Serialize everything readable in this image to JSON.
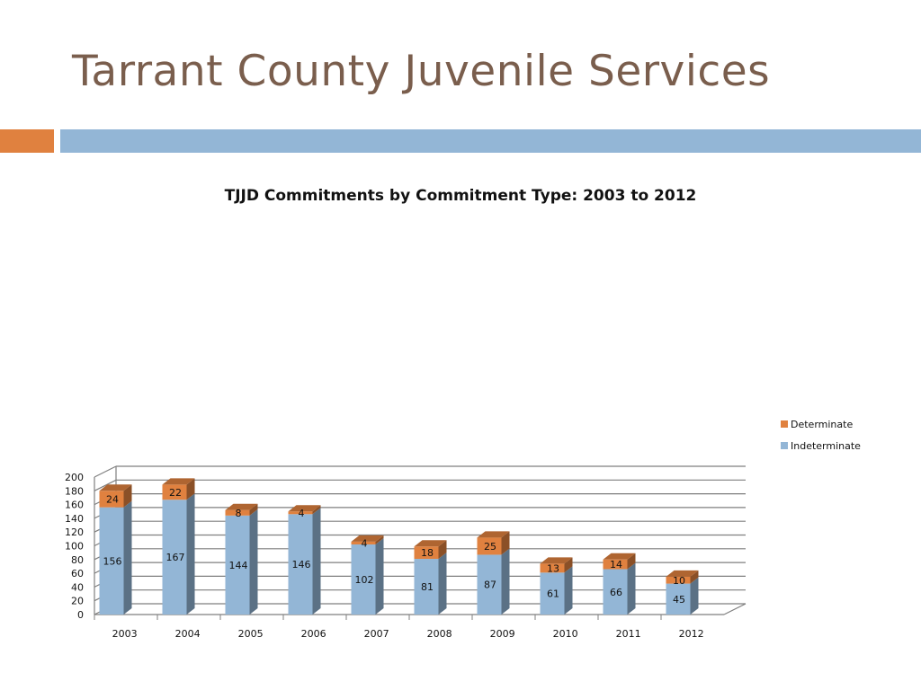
{
  "slide": {
    "title": "Tarrant County Juvenile Services"
  },
  "colors": {
    "title": "#7a5e4d",
    "accent_orange": "#e0813f",
    "accent_blue": "#93b6d6",
    "indeterminate": "#93b6d6",
    "determinate": "#e0813f"
  },
  "chart_data": {
    "type": "bar",
    "stacked": true,
    "three_d": true,
    "title": "TJJD Commitments by Commitment Type: 2003 to 2012",
    "xlabel": "",
    "ylabel": "",
    "categories": [
      "2003",
      "2004",
      "2005",
      "2006",
      "2007",
      "2008",
      "2009",
      "2010",
      "2011",
      "2012"
    ],
    "series": [
      {
        "name": "Indeterminate",
        "color": "#93b6d6",
        "values": [
          156,
          167,
          144,
          146,
          102,
          81,
          87,
          61,
          66,
          45
        ]
      },
      {
        "name": "Determinate",
        "color": "#e0813f",
        "values": [
          24,
          22,
          8,
          4,
          4,
          18,
          25,
          13,
          14,
          10
        ]
      }
    ],
    "legend_entries": [
      "Determinate",
      "Indeterminate"
    ],
    "legend_position": "right",
    "ylim": [
      0,
      200
    ],
    "yticks": [
      "0",
      "20",
      "40",
      "60",
      "80",
      "100",
      "120",
      "140",
      "160",
      "180",
      "200"
    ],
    "grid": true
  }
}
